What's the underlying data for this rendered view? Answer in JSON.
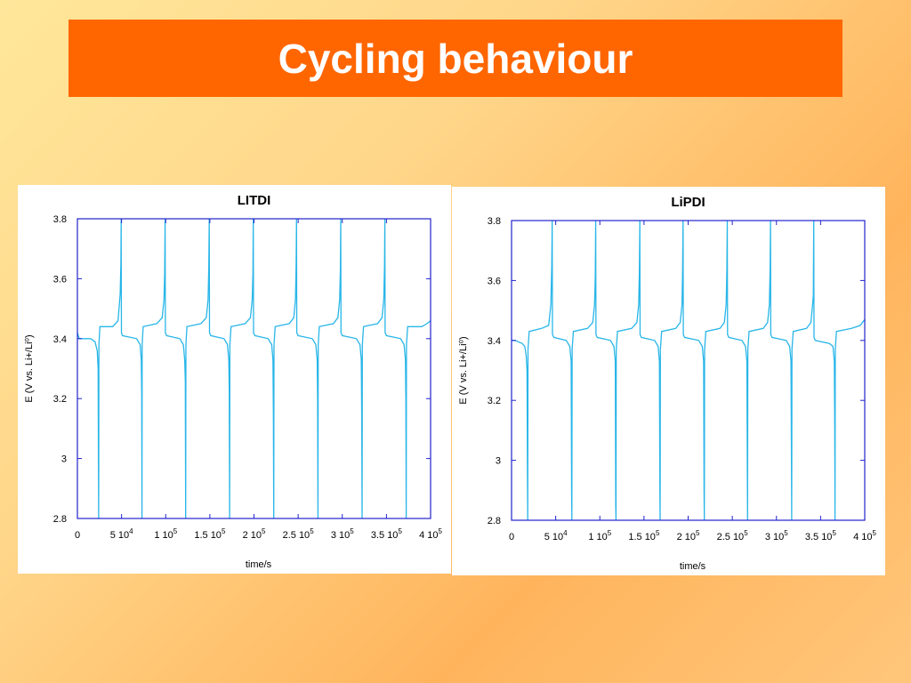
{
  "slide": {
    "title": "Cycling behaviour"
  },
  "colors": {
    "title_bar": "#ff6600",
    "title_text": "#ffffff",
    "axes": "#2222cc",
    "trace": "#29b6e8"
  },
  "chart_data": [
    {
      "type": "line",
      "title": "LITDI",
      "xlabel": "time/s",
      "ylabel": "E (V vs. Li+/Li⁰)",
      "xlim": [
        0,
        400000
      ],
      "ylim": [
        2.8,
        3.8
      ],
      "grid": false,
      "xticks": [
        {
          "value": 0,
          "mant": "0",
          "exp": ""
        },
        {
          "value": 50000,
          "mant": "5 10",
          "exp": "4"
        },
        {
          "value": 100000,
          "mant": "1 10",
          "exp": "5"
        },
        {
          "value": 150000,
          "mant": "1.5 10",
          "exp": "5"
        },
        {
          "value": 200000,
          "mant": "2 10",
          "exp": "5"
        },
        {
          "value": 250000,
          "mant": "2.5 10",
          "exp": "5"
        },
        {
          "value": 300000,
          "mant": "3 10",
          "exp": "5"
        },
        {
          "value": 350000,
          "mant": "3.5 10",
          "exp": "5"
        },
        {
          "value": 400000,
          "mant": "4 10",
          "exp": "5"
        }
      ],
      "yticks": [
        {
          "value": 2.8,
          "label": "2.8"
        },
        {
          "value": 3.0,
          "label": "3"
        },
        {
          "value": 3.2,
          "label": "3.2"
        },
        {
          "value": 3.4,
          "label": "3.4"
        },
        {
          "value": 3.6,
          "label": "3.6"
        },
        {
          "value": 3.8,
          "label": "3.8"
        }
      ],
      "series": [
        {
          "values": [
            [
              0,
              3.42
            ],
            [
              2000,
              3.4
            ],
            [
              15000,
              3.4
            ],
            [
              20000,
              3.39
            ],
            [
              22500,
              3.36
            ],
            [
              23500,
              3.3
            ],
            [
              23800,
              3.03
            ],
            [
              24100,
              2.8
            ],
            [
              24400,
              3.38
            ],
            [
              25500,
              3.44
            ],
            [
              40000,
              3.44
            ],
            [
              46000,
              3.46
            ],
            [
              48500,
              3.55
            ],
            [
              49300,
              3.65
            ],
            [
              49600,
              3.8
            ],
            [
              49900,
              3.42
            ],
            [
              51000,
              3.41
            ],
            [
              67000,
              3.4
            ],
            [
              71000,
              3.38
            ],
            [
              72300,
              3.33
            ],
            [
              72800,
              3.21
            ],
            [
              73100,
              2.8
            ],
            [
              73400,
              3.38
            ],
            [
              74500,
              3.44
            ],
            [
              90000,
              3.45
            ],
            [
              96000,
              3.47
            ],
            [
              98000,
              3.53
            ],
            [
              98800,
              3.62
            ],
            [
              99300,
              3.8
            ],
            [
              99600,
              3.42
            ],
            [
              101000,
              3.41
            ],
            [
              116000,
              3.4
            ],
            [
              120000,
              3.38
            ],
            [
              121500,
              3.33
            ],
            [
              122200,
              3.26
            ],
            [
              122600,
              2.8
            ],
            [
              122900,
              3.38
            ],
            [
              124000,
              3.44
            ],
            [
              140000,
              3.45
            ],
            [
              146000,
              3.47
            ],
            [
              148000,
              3.53
            ],
            [
              148800,
              3.64
            ],
            [
              149300,
              3.8
            ],
            [
              149600,
              3.42
            ],
            [
              151000,
              3.41
            ],
            [
              166000,
              3.4
            ],
            [
              170000,
              3.38
            ],
            [
              171500,
              3.33
            ],
            [
              172000,
              3.22
            ],
            [
              172400,
              2.8
            ],
            [
              172700,
              3.38
            ],
            [
              174000,
              3.44
            ],
            [
              190000,
              3.45
            ],
            [
              196000,
              3.47
            ],
            [
              198000,
              3.53
            ],
            [
              198800,
              3.62
            ],
            [
              199200,
              3.8
            ],
            [
              199500,
              3.42
            ],
            [
              201000,
              3.41
            ],
            [
              216000,
              3.4
            ],
            [
              220000,
              3.38
            ],
            [
              221500,
              3.33
            ],
            [
              222000,
              3.15
            ],
            [
              222400,
              2.8
            ],
            [
              222700,
              3.38
            ],
            [
              224000,
              3.44
            ],
            [
              240000,
              3.45
            ],
            [
              245000,
              3.47
            ],
            [
              247000,
              3.53
            ],
            [
              247800,
              3.65
            ],
            [
              248200,
              3.8
            ],
            [
              248500,
              3.42
            ],
            [
              250000,
              3.41
            ],
            [
              266000,
              3.4
            ],
            [
              270000,
              3.38
            ],
            [
              271500,
              3.33
            ],
            [
              272000,
              3.2
            ],
            [
              272400,
              2.8
            ],
            [
              272700,
              3.38
            ],
            [
              274000,
              3.44
            ],
            [
              290000,
              3.45
            ],
            [
              295000,
              3.47
            ],
            [
              297000,
              3.53
            ],
            [
              297800,
              3.63
            ],
            [
              298200,
              3.8
            ],
            [
              298500,
              3.42
            ],
            [
              300000,
              3.41
            ],
            [
              316000,
              3.4
            ],
            [
              320000,
              3.38
            ],
            [
              321500,
              3.33
            ],
            [
              322000,
              3.14
            ],
            [
              322400,
              2.8
            ],
            [
              322700,
              3.38
            ],
            [
              324000,
              3.44
            ],
            [
              340000,
              3.45
            ],
            [
              345000,
              3.47
            ],
            [
              347000,
              3.53
            ],
            [
              347800,
              3.64
            ],
            [
              348200,
              3.8
            ],
            [
              348500,
              3.42
            ],
            [
              350000,
              3.41
            ],
            [
              366000,
              3.4
            ],
            [
              370000,
              3.38
            ],
            [
              371500,
              3.33
            ],
            [
              372000,
              3.2
            ],
            [
              372400,
              2.8
            ],
            [
              372700,
              3.38
            ],
            [
              374000,
              3.44
            ],
            [
              390000,
              3.44
            ],
            [
              396000,
              3.45
            ],
            [
              400000,
              3.46
            ]
          ]
        }
      ]
    },
    {
      "type": "line",
      "title": "LiPDI",
      "xlabel": "time/s",
      "ylabel": "E (V vs. Li+/Li⁰)",
      "xlim": [
        0,
        400000
      ],
      "ylim": [
        2.8,
        3.8
      ],
      "grid": false,
      "xticks": [
        {
          "value": 0,
          "mant": "0",
          "exp": ""
        },
        {
          "value": 50000,
          "mant": "5 10",
          "exp": "4"
        },
        {
          "value": 100000,
          "mant": "1 10",
          "exp": "5"
        },
        {
          "value": 150000,
          "mant": "1.5 10",
          "exp": "5"
        },
        {
          "value": 200000,
          "mant": "2 10",
          "exp": "5"
        },
        {
          "value": 250000,
          "mant": "2.5 10",
          "exp": "5"
        },
        {
          "value": 300000,
          "mant": "3 10",
          "exp": "5"
        },
        {
          "value": 350000,
          "mant": "3.5 10",
          "exp": "5"
        },
        {
          "value": 400000,
          "mant": "4 10",
          "exp": "5"
        }
      ],
      "yticks": [
        {
          "value": 2.8,
          "label": "2.8"
        },
        {
          "value": 3.0,
          "label": "3"
        },
        {
          "value": 3.2,
          "label": "3.2"
        },
        {
          "value": 3.4,
          "label": "3.4"
        },
        {
          "value": 3.6,
          "label": "3.6"
        },
        {
          "value": 3.8,
          "label": "3.8"
        }
      ],
      "series": [
        {
          "values": [
            [
              0,
              3.4
            ],
            [
              4000,
              3.4
            ],
            [
              12000,
              3.39
            ],
            [
              15000,
              3.38
            ],
            [
              16500,
              3.35
            ],
            [
              17500,
              3.3
            ],
            [
              18000,
              2.96
            ],
            [
              18300,
              2.8
            ],
            [
              18600,
              3.37
            ],
            [
              20000,
              3.43
            ],
            [
              34000,
              3.44
            ],
            [
              42000,
              3.45
            ],
            [
              44500,
              3.52
            ],
            [
              45500,
              3.65
            ],
            [
              46000,
              3.8
            ],
            [
              46300,
              3.42
            ],
            [
              48000,
              3.41
            ],
            [
              62000,
              3.4
            ],
            [
              66000,
              3.38
            ],
            [
              67500,
              3.33
            ],
            [
              68000,
              2.9
            ],
            [
              68300,
              2.8
            ],
            [
              68600,
              3.37
            ],
            [
              70000,
              3.43
            ],
            [
              86000,
              3.44
            ],
            [
              92000,
              3.46
            ],
            [
              94000,
              3.52
            ],
            [
              94800,
              3.61
            ],
            [
              95300,
              3.8
            ],
            [
              95600,
              3.42
            ],
            [
              97000,
              3.41
            ],
            [
              112000,
              3.4
            ],
            [
              116000,
              3.38
            ],
            [
              117500,
              3.33
            ],
            [
              118000,
              2.85
            ],
            [
              118300,
              2.8
            ],
            [
              118600,
              3.37
            ],
            [
              120000,
              3.43
            ],
            [
              136000,
              3.44
            ],
            [
              142000,
              3.46
            ],
            [
              144000,
              3.52
            ],
            [
              144800,
              3.63
            ],
            [
              145300,
              3.8
            ],
            [
              145600,
              3.42
            ],
            [
              147000,
              3.41
            ],
            [
              162000,
              3.4
            ],
            [
              166000,
              3.38
            ],
            [
              167500,
              3.33
            ],
            [
              168000,
              2.92
            ],
            [
              168300,
              2.8
            ],
            [
              168600,
              3.37
            ],
            [
              170000,
              3.43
            ],
            [
              186000,
              3.44
            ],
            [
              191000,
              3.46
            ],
            [
              193000,
              3.52
            ],
            [
              193800,
              3.64
            ],
            [
              194300,
              3.8
            ],
            [
              194600,
              3.42
            ],
            [
              196000,
              3.41
            ],
            [
              212000,
              3.4
            ],
            [
              216000,
              3.38
            ],
            [
              217500,
              3.33
            ],
            [
              218000,
              2.9
            ],
            [
              218300,
              2.8
            ],
            [
              218600,
              3.37
            ],
            [
              220000,
              3.43
            ],
            [
              236000,
              3.44
            ],
            [
              241000,
              3.46
            ],
            [
              243000,
              3.52
            ],
            [
              243800,
              3.63
            ],
            [
              244300,
              3.8
            ],
            [
              244600,
              3.42
            ],
            [
              246000,
              3.41
            ],
            [
              261000,
              3.4
            ],
            [
              265000,
              3.38
            ],
            [
              266500,
              3.33
            ],
            [
              267000,
              3.02
            ],
            [
              267300,
              2.8
            ],
            [
              267600,
              3.37
            ],
            [
              269000,
              3.43
            ],
            [
              285000,
              3.44
            ],
            [
              290000,
              3.46
            ],
            [
              292000,
              3.52
            ],
            [
              292800,
              3.63
            ],
            [
              293300,
              3.8
            ],
            [
              293600,
              3.42
            ],
            [
              295000,
              3.41
            ],
            [
              311000,
              3.4
            ],
            [
              315000,
              3.38
            ],
            [
              316500,
              3.33
            ],
            [
              317000,
              3.02
            ],
            [
              317300,
              2.8
            ],
            [
              317600,
              3.37
            ],
            [
              319000,
              3.43
            ],
            [
              334000,
              3.44
            ],
            [
              339000,
              3.46
            ],
            [
              341000,
              3.52
            ],
            [
              341800,
              3.55
            ],
            [
              342300,
              3.8
            ],
            [
              342600,
              3.41
            ],
            [
              344000,
              3.4
            ],
            [
              360000,
              3.39
            ],
            [
              364000,
              3.38
            ],
            [
              365500,
              3.33
            ],
            [
              366000,
              3.1
            ],
            [
              366300,
              2.8
            ],
            [
              366600,
              3.37
            ],
            [
              368000,
              3.43
            ],
            [
              385000,
              3.44
            ],
            [
              395000,
              3.45
            ],
            [
              400000,
              3.47
            ]
          ]
        }
      ]
    }
  ]
}
